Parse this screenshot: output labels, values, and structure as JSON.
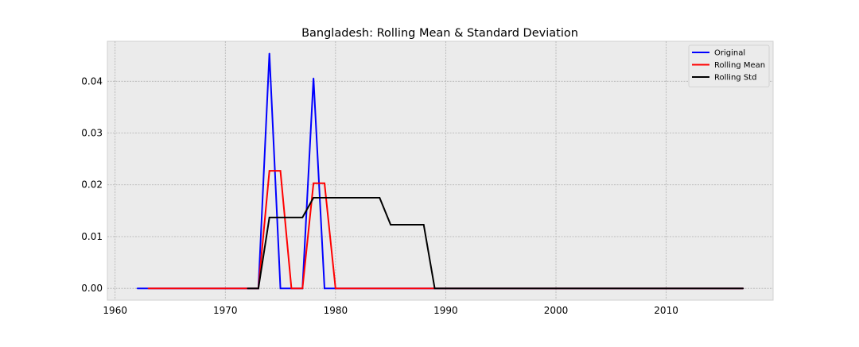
{
  "chart_data": {
    "type": "line",
    "title": "Bangladesh: Rolling Mean & Standard Deviation",
    "xlabel": "",
    "ylabel": "",
    "xlim": [
      1959.3,
      2019.7
    ],
    "ylim": [
      -0.00227,
      0.04771
    ],
    "x_ticks": [
      1960,
      1970,
      1980,
      1990,
      2000,
      2010
    ],
    "x_tick_labels": [
      "1960",
      "1970",
      "1980",
      "1990",
      "2000",
      "2010"
    ],
    "y_ticks": [
      0.0,
      0.01,
      0.02,
      0.03,
      0.04
    ],
    "y_tick_labels": [
      "0.00",
      "0.01",
      "0.02",
      "0.03",
      "0.04"
    ],
    "grid": true,
    "legend_position": "top-right",
    "series": [
      {
        "name": "Original",
        "color": "#0000ff",
        "x": [
          1962,
          1963,
          1964,
          1965,
          1966,
          1967,
          1968,
          1969,
          1970,
          1971,
          1972,
          1973,
          1974,
          1975,
          1976,
          1977,
          1978,
          1979,
          1980,
          1981,
          1982,
          1983,
          1984,
          1985,
          1986,
          1987,
          1988,
          1989,
          1990,
          1991,
          1992,
          1993,
          1994,
          1995,
          1996,
          1997,
          1998,
          1999,
          2000,
          2001,
          2002,
          2003,
          2004,
          2005,
          2006,
          2007,
          2008,
          2009,
          2010,
          2011,
          2012,
          2013,
          2014,
          2015,
          2016,
          2017
        ],
        "y": [
          0,
          0,
          0,
          0,
          0,
          0,
          0,
          0,
          0,
          0,
          0,
          0,
          0.0454,
          0,
          0,
          0,
          0.0406,
          0,
          0,
          0,
          0,
          0,
          0,
          0,
          0,
          0,
          0,
          0,
          0,
          0,
          0,
          0,
          0,
          0,
          0,
          0,
          0,
          0,
          0,
          0,
          0,
          0,
          0,
          0,
          0,
          0,
          0,
          0,
          0,
          0,
          0,
          0,
          0,
          0,
          0,
          0
        ]
      },
      {
        "name": "Rolling Mean",
        "color": "#ff0000",
        "x": [
          1963,
          1964,
          1965,
          1966,
          1967,
          1968,
          1969,
          1970,
          1971,
          1972,
          1973,
          1974,
          1975,
          1976,
          1977,
          1978,
          1979,
          1980,
          1981,
          1982,
          1983,
          1984,
          1985,
          1986,
          1987,
          1988,
          1989,
          1990,
          1991,
          1992,
          1993,
          1994,
          1995,
          1996,
          1997,
          1998,
          1999,
          2000,
          2001,
          2002,
          2003,
          2004,
          2005,
          2006,
          2007,
          2008,
          2009,
          2010,
          2011,
          2012,
          2013,
          2014,
          2015,
          2016,
          2017
        ],
        "y": [
          0,
          0,
          0,
          0,
          0,
          0,
          0,
          0,
          0,
          0,
          0,
          0.0227,
          0.0227,
          0,
          0,
          0.0203,
          0.0203,
          0,
          0,
          0,
          0,
          0,
          0,
          0,
          0,
          0,
          0,
          0,
          0,
          0,
          0,
          0,
          0,
          0,
          0,
          0,
          0,
          0,
          0,
          0,
          0,
          0,
          0,
          0,
          0,
          0,
          0,
          0,
          0,
          0,
          0,
          0,
          0,
          0,
          0
        ]
      },
      {
        "name": "Rolling Std",
        "color": "#000000",
        "x": [
          1972,
          1973,
          1974,
          1975,
          1976,
          1977,
          1978,
          1979,
          1980,
          1981,
          1982,
          1983,
          1984,
          1985,
          1986,
          1987,
          1988,
          1989,
          1990,
          1991,
          1992,
          1993,
          1994,
          1995,
          1996,
          1997,
          1998,
          1999,
          2000,
          2001,
          2002,
          2003,
          2004,
          2005,
          2006,
          2007,
          2008,
          2009,
          2010,
          2011,
          2012,
          2013,
          2014,
          2015,
          2016,
          2017
        ],
        "y": [
          0,
          0,
          0.0137,
          0.0137,
          0.0137,
          0.0137,
          0.0175,
          0.0175,
          0.0175,
          0.0175,
          0.0175,
          0.0175,
          0.0175,
          0.0123,
          0.0123,
          0.0123,
          0.0123,
          0,
          0,
          0,
          0,
          0,
          0,
          0,
          0,
          0,
          0,
          0,
          0,
          0,
          0,
          0,
          0,
          0,
          0,
          0,
          0,
          0,
          0,
          0,
          0,
          0,
          0,
          0,
          0,
          0
        ]
      }
    ]
  }
}
